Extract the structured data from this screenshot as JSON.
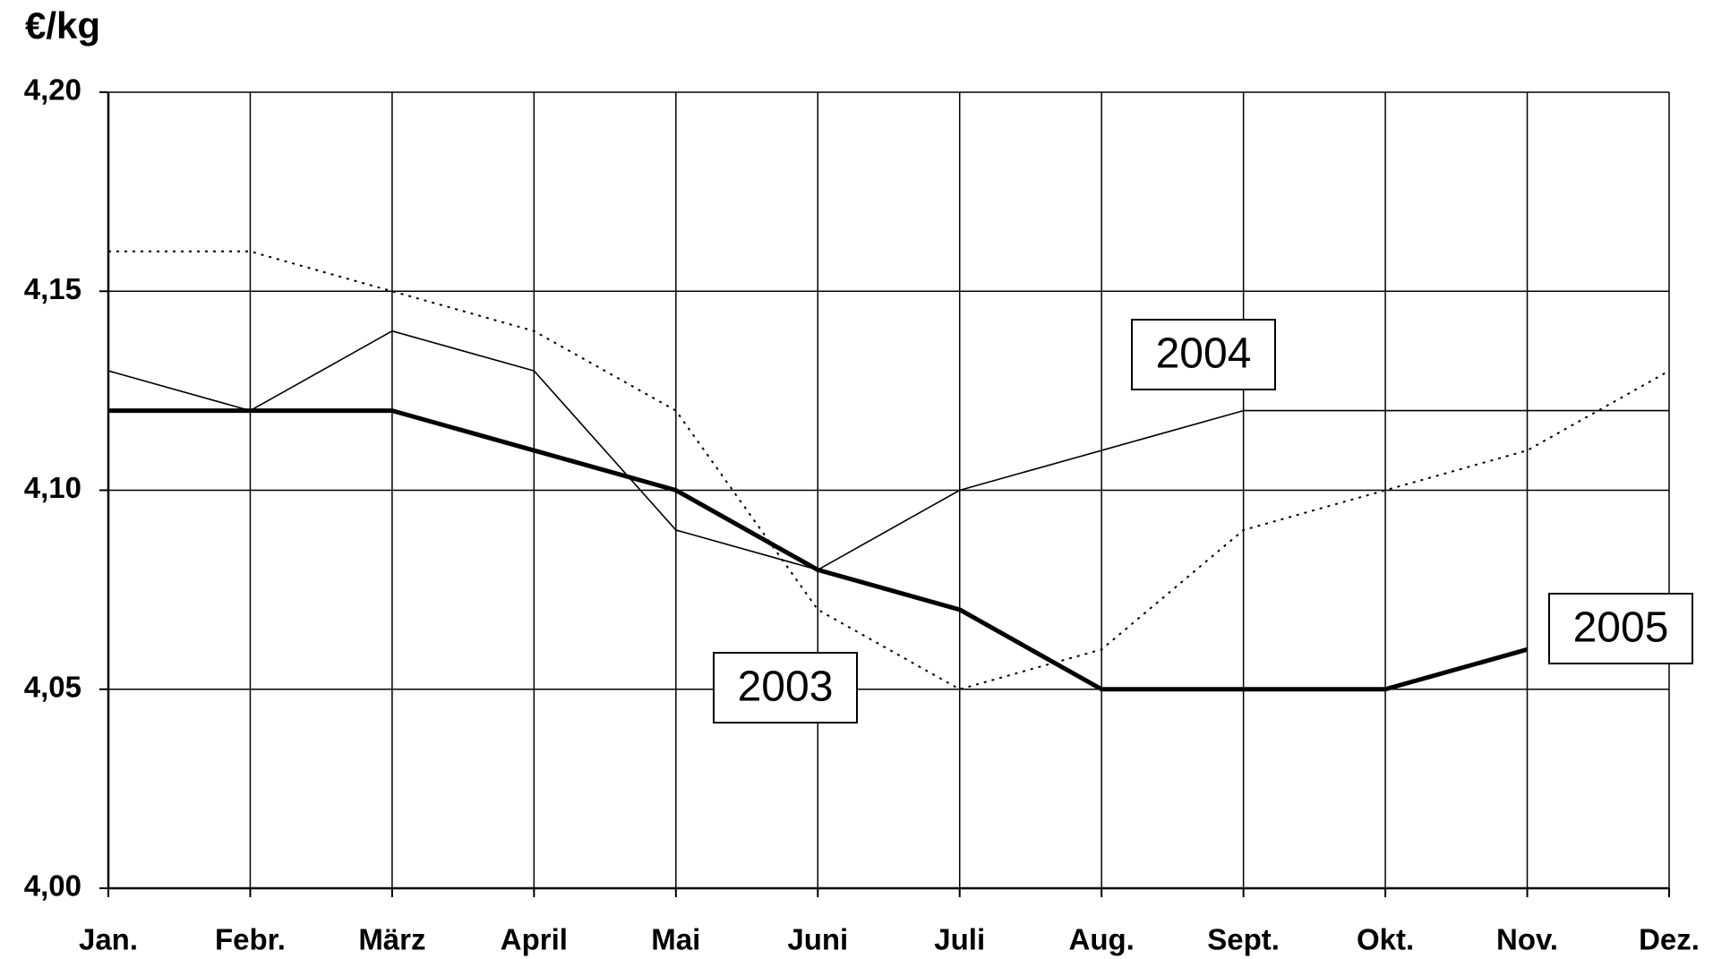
{
  "chart_data": {
    "type": "line",
    "title": "€/kg",
    "categories": [
      "Jan.",
      "Febr.",
      "März",
      "April",
      "Mai",
      "Juni",
      "Juli",
      "Aug.",
      "Sept.",
      "Okt.",
      "Nov.",
      "Dez."
    ],
    "ylim": [
      4.0,
      4.2
    ],
    "yticks": [
      {
        "value": 4.0,
        "label": "4,00"
      },
      {
        "value": 4.05,
        "label": "4,05"
      },
      {
        "value": 4.1,
        "label": "4,10"
      },
      {
        "value": 4.15,
        "label": "4,15"
      },
      {
        "value": 4.2,
        "label": "4,20"
      }
    ],
    "grid": true,
    "series": [
      {
        "name": "2003",
        "color": "#000000",
        "line_style": "dotted",
        "values": [
          4.16,
          4.16,
          4.15,
          4.14,
          4.12,
          4.07,
          4.05,
          4.06,
          4.09,
          4.1,
          4.11,
          4.13
        ]
      },
      {
        "name": "2004",
        "color": "#000000",
        "line_style": "thin",
        "values": [
          4.13,
          4.12,
          4.14,
          4.13,
          4.09,
          4.08,
          4.1,
          4.11,
          4.12,
          4.12,
          4.12,
          4.12
        ]
      },
      {
        "name": "2005",
        "color": "#000000",
        "line_style": "thick",
        "values": [
          4.12,
          4.12,
          4.12,
          4.11,
          4.1,
          4.08,
          4.07,
          4.05,
          4.05,
          4.05,
          4.06,
          null
        ]
      }
    ]
  }
}
